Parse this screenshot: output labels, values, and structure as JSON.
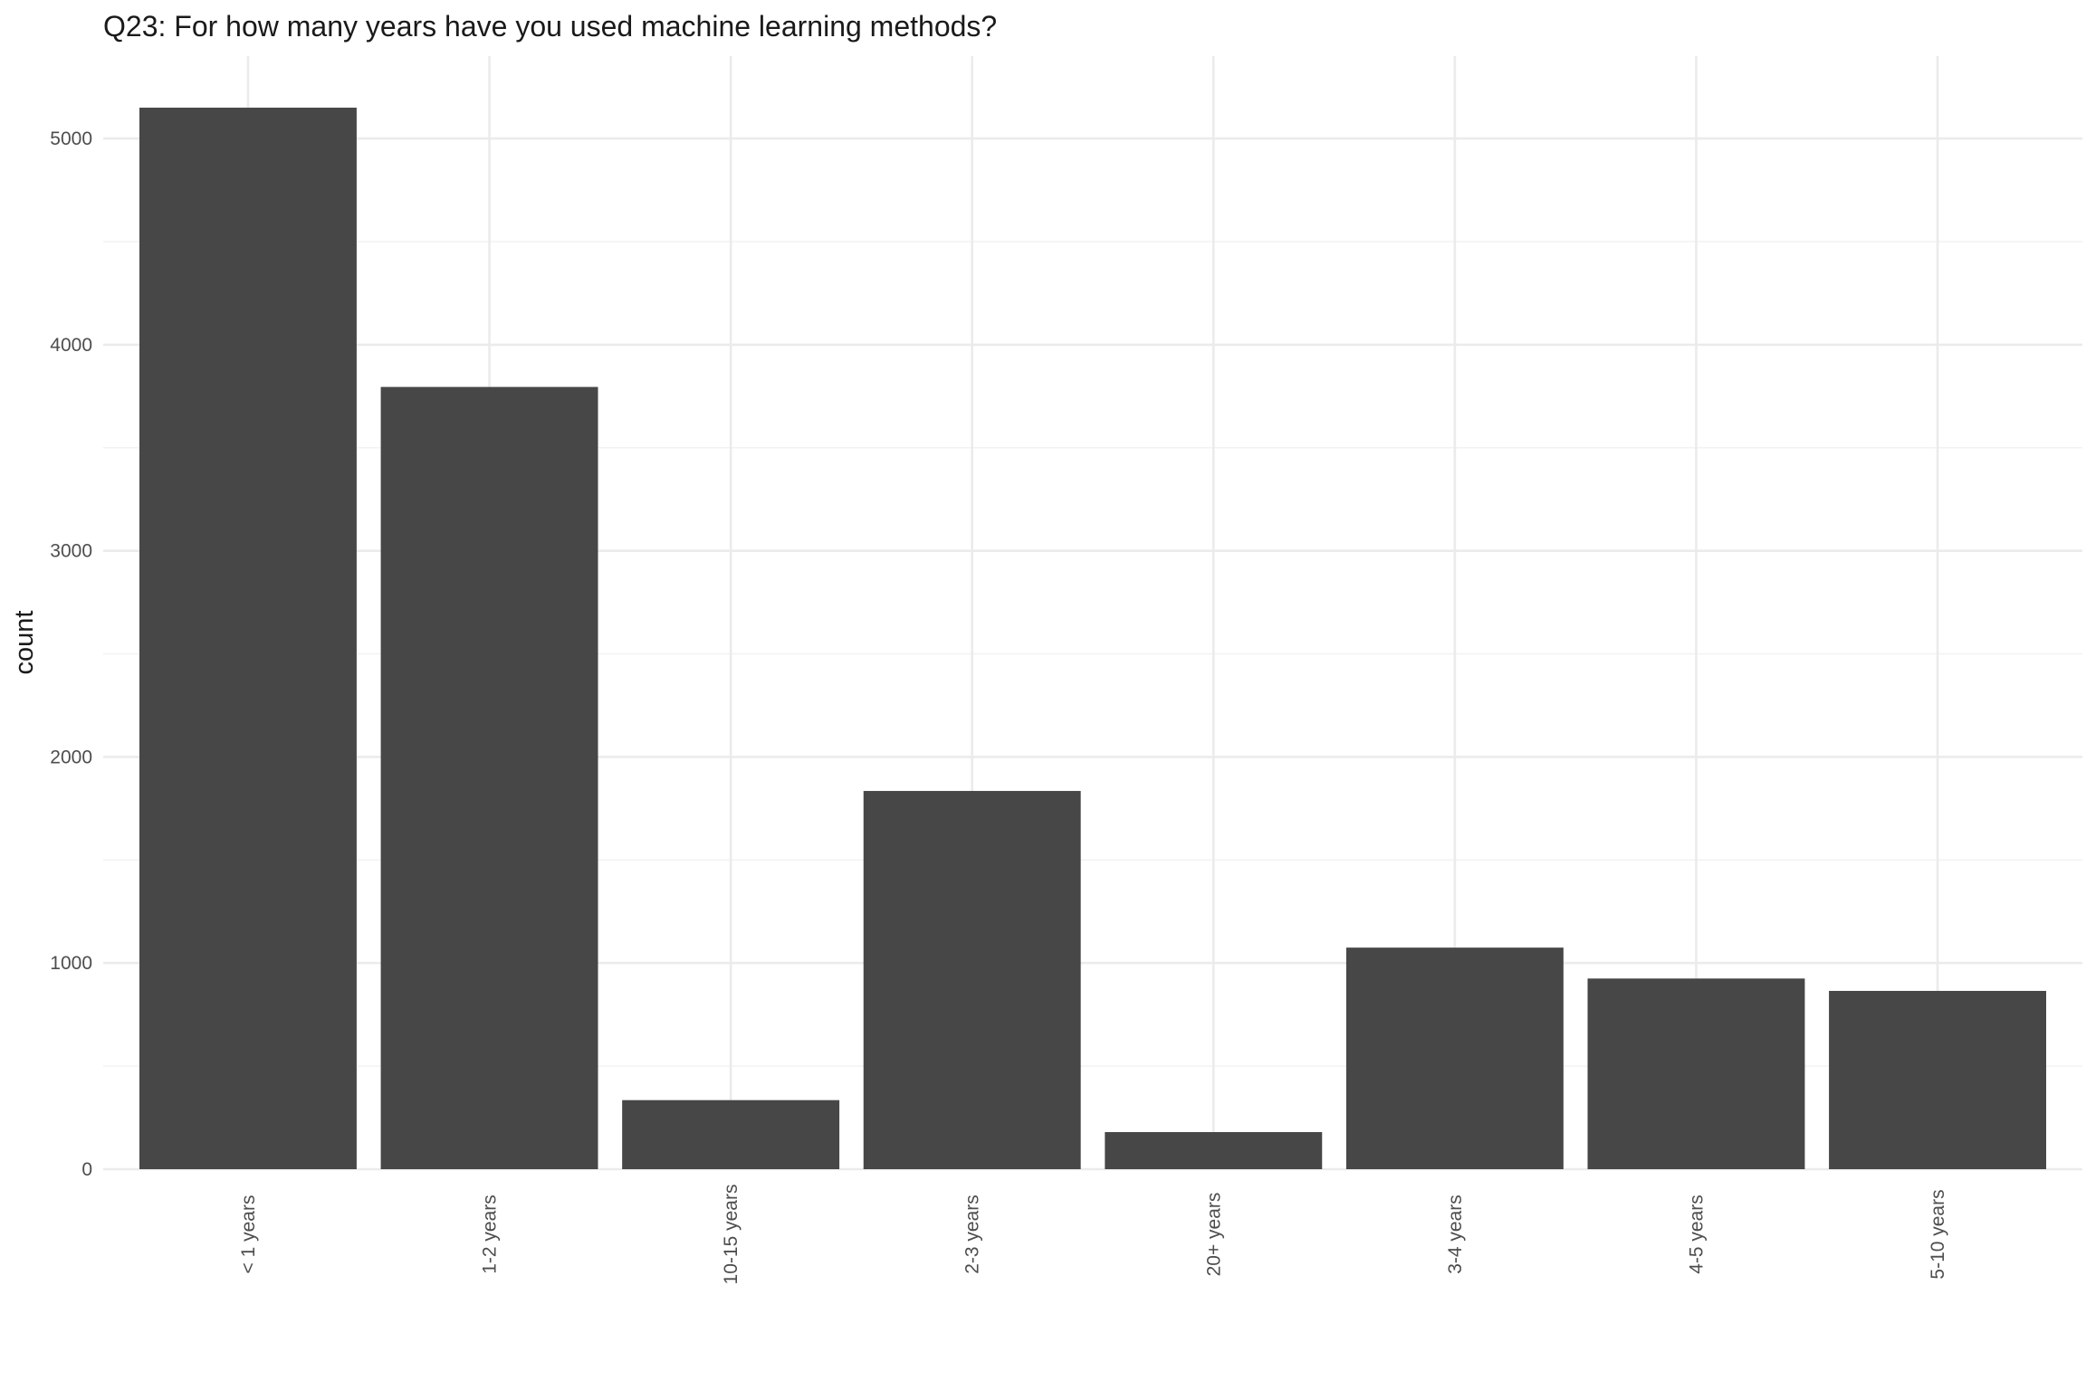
{
  "chart_data": {
    "type": "bar",
    "title": "Q23: For how many years have you used machine learning methods?",
    "xlabel": "",
    "ylabel": "count",
    "categories": [
      "< 1 years",
      "1-2 years",
      "10-15 years",
      "2-3 years",
      "20+ years",
      "3-4 years",
      "4-5 years",
      "5-10 years"
    ],
    "values": [
      5150,
      3795,
      335,
      1835,
      180,
      1075,
      925,
      865
    ],
    "ylim": [
      0,
      5400
    ],
    "yticks": [
      "0",
      "1000",
      "2000",
      "3000",
      "4000",
      "5000"
    ],
    "grid": true,
    "bar_color": "#474747",
    "grid_color": "#ebebeb"
  }
}
